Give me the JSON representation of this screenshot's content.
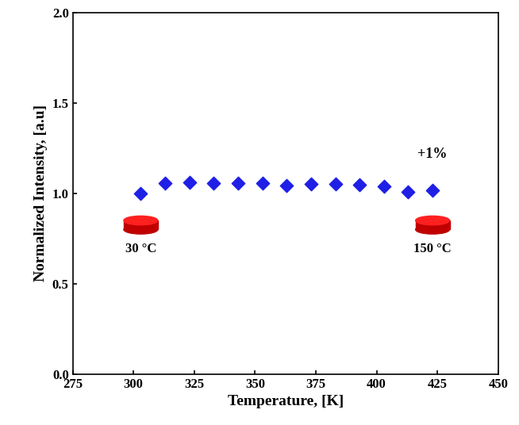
{
  "chart_data": {
    "type": "scatter",
    "x_label": "Temperature, [K]",
    "y_label": "Normalized Intensity, [a.u]",
    "x": [
      303,
      313,
      323,
      333,
      343,
      353,
      363,
      373,
      383,
      393,
      403,
      413,
      423
    ],
    "values": [
      1.0,
      1.055,
      1.06,
      1.055,
      1.058,
      1.058,
      1.045,
      1.05,
      1.05,
      1.048,
      1.038,
      1.008,
      1.018
    ],
    "color": "#1f1fe6",
    "marker": "diamond",
    "annotations": [
      "+1%",
      "30 °C",
      "150 °C"
    ],
    "xlim": [
      275,
      450
    ],
    "xticks": [
      275,
      300,
      325,
      350,
      375,
      400,
      425,
      450
    ],
    "ylim": [
      0.0,
      2.0
    ],
    "yticks": [
      {
        "value": 0.0,
        "label": "0.0"
      },
      {
        "value": 0.5,
        "label": "0.5"
      },
      {
        "value": 1.0,
        "label": "1.0"
      },
      {
        "value": 1.5,
        "label": "1.5"
      },
      {
        "value": 2.0,
        "label": "2.0"
      }
    ],
    "grid": false
  }
}
